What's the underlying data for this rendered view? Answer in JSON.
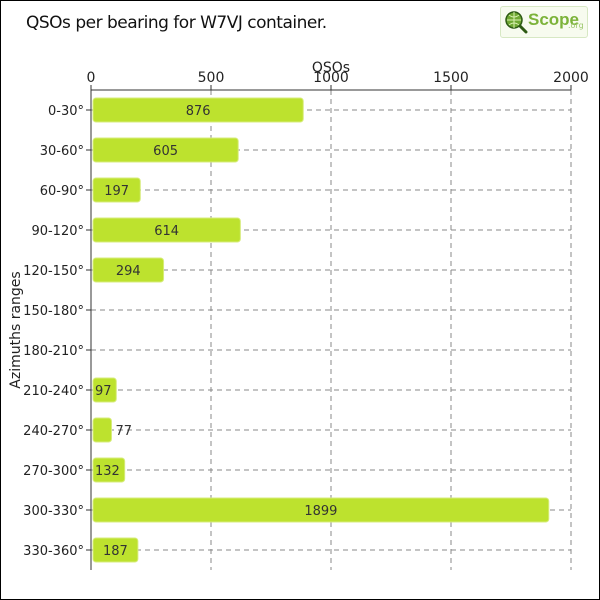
{
  "chart_data": {
    "type": "bar",
    "orientation": "horizontal",
    "title": "QSOs per bearing for W7VJ container.",
    "xlabel": "QSOs",
    "ylabel": "Azimuths ranges",
    "categories": [
      "0-30°",
      "30-60°",
      "60-90°",
      "90-120°",
      "120-150°",
      "150-180°",
      "180-210°",
      "210-240°",
      "240-270°",
      "270-300°",
      "300-330°",
      "330-360°"
    ],
    "values": [
      876,
      605,
      197,
      614,
      294,
      0,
      0,
      97,
      77,
      132,
      1899,
      187
    ],
    "value_labels": [
      "876",
      "605",
      "197",
      "614",
      "294",
      "",
      "",
      "97",
      "77",
      "132",
      "1899",
      "187"
    ],
    "xlim": [
      0,
      2000
    ],
    "xticks": [
      0,
      500,
      1000,
      1500,
      2000
    ],
    "xtick_labels": [
      "0",
      "500",
      "1000",
      "1500",
      "2000"
    ],
    "x_axis_position": "top",
    "grid": true,
    "bar_color": "#bde22e",
    "bar_edge_color": "#d7ec7c",
    "grid_color": "#888888"
  },
  "logo": {
    "text": "Scope",
    "suffix": ".org",
    "color": "#7cb33a",
    "icon": "magnifier-globe-icon"
  }
}
